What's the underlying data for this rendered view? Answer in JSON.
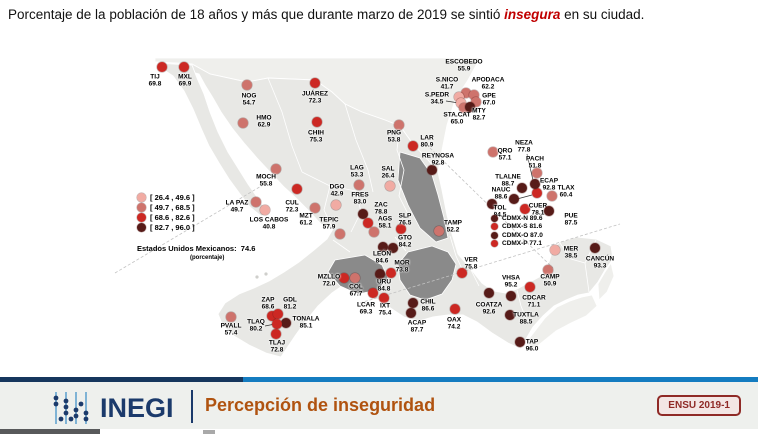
{
  "title": {
    "part1": "Porcentaje de la población de 18 años y más que durante marzo de 2019 se sintió ",
    "highlight": "insegura",
    "part2": " en su ciudad."
  },
  "colors": {
    "class_colors": [
      "#F1ABA3",
      "#CE736C",
      "#CC2823",
      "#571B18"
    ],
    "accent_red": "#c00000",
    "brand_navy": "#1b3a6b",
    "stripe_blue": "#147cc0",
    "footer_orange": "#b05310",
    "badge_red": "#8f2a26"
  },
  "legend": {
    "classes": [
      {
        "label": "[ 26.4 , 49.6 ]",
        "color": "#F1ABA3"
      },
      {
        "label": "[ 49.7 , 68.5 ]",
        "color": "#CE736C"
      },
      {
        "label": "[ 68.6 , 82.6 ]",
        "color": "#CC2823"
      },
      {
        "label": "[ 82.7 , 96.0 ]",
        "color": "#571B18"
      }
    ],
    "national_label": "Estados Unidos Mexicanos:",
    "national_value": "74.6",
    "unit_note": "(porcentaje)"
  },
  "cities": [
    {
      "n": "TIJ",
      "v": "69.8",
      "c": 3,
      "d": [
        162,
        67
      ],
      "l": [
        155,
        81
      ]
    },
    {
      "n": "MXL",
      "v": "69.9",
      "c": 3,
      "d": [
        184,
        67
      ],
      "l": [
        185,
        81
      ]
    },
    {
      "n": "NOG",
      "v": "54.7",
      "c": 2,
      "d": [
        247,
        85
      ],
      "l": [
        249,
        100
      ]
    },
    {
      "n": "HMO",
      "v": "62.9",
      "c": 2,
      "d": [
        243,
        123
      ],
      "l": [
        264,
        122
      ]
    },
    {
      "n": "JUÁREZ",
      "v": "72.3",
      "c": 3,
      "d": [
        315,
        83
      ],
      "l": [
        315,
        98
      ]
    },
    {
      "n": "CHIH",
      "v": "75.3",
      "c": 3,
      "d": [
        317,
        122
      ],
      "l": [
        316,
        137
      ]
    },
    {
      "n": "MOCH",
      "v": "55.8",
      "c": 2,
      "d": [
        276,
        169
      ],
      "l": [
        266,
        181
      ]
    },
    {
      "n": "LA PAZ",
      "v": "49.7",
      "c": 2,
      "d": [
        256,
        202
      ],
      "l": [
        237,
        207
      ]
    },
    {
      "n": "LOS CABOS",
      "v": "40.8",
      "c": 1,
      "d": [
        265,
        210
      ],
      "l": [
        269,
        224
      ]
    },
    {
      "n": "CUL",
      "v": "72.3",
      "c": 3,
      "d": [
        297,
        189
      ],
      "l": [
        292,
        207
      ]
    },
    {
      "n": "MZT",
      "v": "61.2",
      "c": 2,
      "d": [
        315,
        208
      ],
      "l": [
        306,
        220
      ]
    },
    {
      "n": "DGO",
      "v": "42.9",
      "c": 1,
      "d": [
        336,
        205
      ],
      "l": [
        337,
        191
      ]
    },
    {
      "n": "TEPIC",
      "v": "57.9",
      "c": 2,
      "d": [
        340,
        234
      ],
      "l": [
        329,
        224
      ]
    },
    {
      "n": "ESCOBEDO",
      "v": "55.9",
      "c": 2,
      "d": [
        466,
        93
      ],
      "l": [
        464,
        66
      ]
    },
    {
      "n": "S.NICO",
      "v": "41.7",
      "c": 1,
      "d": [
        459,
        97
      ],
      "l": [
        447,
        84
      ]
    },
    {
      "n": "APODACA",
      "v": "62.2",
      "c": 2,
      "d": [
        474,
        95
      ],
      "l": [
        488,
        84
      ]
    },
    {
      "n": "S.PEDR",
      "v": "34.5",
      "c": 1,
      "d": [
        461,
        103
      ],
      "l": [
        437,
        99
      ]
    },
    {
      "n": "GPE",
      "v": "67.0",
      "c": 2,
      "d": [
        476,
        102
      ],
      "l": [
        489,
        100
      ]
    },
    {
      "n": "STA.CAT",
      "v": "65.0",
      "c": 2,
      "d": [
        464,
        108
      ],
      "l": [
        457,
        119
      ]
    },
    {
      "n": "MTY",
      "v": "82.7",
      "c": 4,
      "d": [
        470,
        107
      ],
      "l": [
        479,
        115
      ]
    },
    {
      "n": "PNG",
      "v": "53.8",
      "c": 2,
      "d": [
        399,
        125
      ],
      "l": [
        394,
        137
      ]
    },
    {
      "n": "LAR",
      "v": "80.9",
      "c": 3,
      "d": [
        413,
        146
      ],
      "l": [
        427,
        142
      ]
    },
    {
      "n": "REYNOSA",
      "v": "92.8",
      "c": 4,
      "d": [
        432,
        170
      ],
      "l": [
        438,
        160
      ]
    },
    {
      "n": "LAG",
      "v": "53.3",
      "c": 2,
      "d": [
        359,
        185
      ],
      "l": [
        357,
        172
      ]
    },
    {
      "n": "SAL",
      "v": "26.4",
      "c": 1,
      "d": [
        390,
        186
      ],
      "l": [
        388,
        173
      ]
    },
    {
      "n": "TAMP",
      "v": "52.2",
      "c": 2,
      "d": [
        439,
        231
      ],
      "l": [
        453,
        227
      ]
    },
    {
      "n": "QRO",
      "v": "57.1",
      "c": 2,
      "d": [
        493,
        152
      ],
      "l": [
        505,
        155
      ]
    },
    {
      "n": "PACH",
      "v": "51.8",
      "c": 2,
      "d": [
        537,
        173
      ],
      "l": [
        535,
        163
      ]
    },
    {
      "n": "FRES",
      "v": "83.0",
      "c": 4,
      "d": [
        363,
        214
      ],
      "l": [
        360,
        199
      ]
    },
    {
      "n": "ZAC",
      "v": "78.8",
      "c": 3,
      "d": [
        368,
        223
      ],
      "l": [
        381,
        209
      ]
    },
    {
      "n": "AGS",
      "v": "58.1",
      "c": 2,
      "d": [
        374,
        232
      ],
      "l": [
        385,
        223
      ]
    },
    {
      "n": "SLP",
      "v": "76.5",
      "c": 3,
      "d": [
        401,
        229
      ],
      "l": [
        405,
        220
      ]
    },
    {
      "n": "GTO",
      "v": "84.2",
      "c": 4,
      "d": [
        393,
        248
      ],
      "l": [
        405,
        242
      ]
    },
    {
      "n": "LEÓN",
      "v": "84.6",
      "c": 4,
      "d": [
        383,
        247
      ],
      "l": [
        382,
        258
      ]
    },
    {
      "n": "MOR",
      "v": "73.8",
      "c": 3,
      "d": [
        391,
        273
      ],
      "l": [
        402,
        267
      ]
    },
    {
      "n": "URU",
      "v": "84.8",
      "c": 4,
      "d": [
        380,
        274
      ],
      "l": [
        384,
        286
      ]
    },
    {
      "n": "MZLLO",
      "v": "72.0",
      "c": 3,
      "d": [
        344,
        278
      ],
      "l": [
        329,
        281
      ]
    },
    {
      "n": "COL",
      "v": "67.7",
      "c": 2,
      "d": [
        355,
        278
      ],
      "l": [
        356,
        291
      ]
    },
    {
      "n": "LCAR",
      "v": "69.3",
      "c": 3,
      "d": [
        373,
        293
      ],
      "l": [
        366,
        309
      ]
    },
    {
      "n": "IXT",
      "v": "75.4",
      "c": 3,
      "d": [
        384,
        298
      ],
      "l": [
        385,
        310
      ]
    },
    {
      "n": "ZAP",
      "v": "68.6",
      "c": 3,
      "d": [
        272,
        316
      ],
      "l": [
        268,
        304
      ]
    },
    {
      "n": "GDL",
      "v": "81.2",
      "c": 3,
      "d": [
        278,
        314
      ],
      "l": [
        290,
        304
      ]
    },
    {
      "n": "TONALA",
      "v": "85.1",
      "c": 4,
      "d": [
        286,
        323
      ],
      "l": [
        306,
        323
      ]
    },
    {
      "n": "TLAQ",
      "v": "80.2",
      "c": 3,
      "d": [
        277,
        324
      ],
      "l": [
        256,
        326
      ]
    },
    {
      "n": "TLAJ",
      "v": "72.8",
      "c": 3,
      "d": [
        276,
        334
      ],
      "l": [
        277,
        347
      ]
    },
    {
      "n": "PVALL",
      "v": "57.4",
      "c": 2,
      "d": [
        231,
        317
      ],
      "l": [
        231,
        330
      ]
    },
    {
      "n": "CHIL",
      "v": "86.6",
      "c": 4,
      "d": [
        413,
        303
      ],
      "l": [
        428,
        306
      ]
    },
    {
      "n": "ACAP",
      "v": "87.7",
      "c": 4,
      "d": [
        411,
        313
      ],
      "l": [
        417,
        327
      ]
    },
    {
      "n": "OAX",
      "v": "74.2",
      "c": 3,
      "d": [
        455,
        309
      ],
      "l": [
        454,
        324
      ]
    },
    {
      "n": "VER",
      "v": "75.8",
      "c": 3,
      "d": [
        462,
        273
      ],
      "l": [
        471,
        264
      ]
    },
    {
      "n": "COATZA",
      "v": "92.6",
      "c": 4,
      "d": [
        489,
        293
      ],
      "l": [
        489,
        309
      ]
    },
    {
      "n": "VHSA",
      "v": "95.2",
      "c": 4,
      "d": [
        511,
        296
      ],
      "l": [
        511,
        282
      ]
    },
    {
      "n": "CDCAR",
      "v": "71.1",
      "c": 3,
      "d": [
        530,
        287
      ],
      "l": [
        534,
        302
      ]
    },
    {
      "n": "TUXTLA",
      "v": "88.5",
      "c": 4,
      "d": [
        510,
        315
      ],
      "l": [
        526,
        319
      ]
    },
    {
      "n": "TAP",
      "v": "96.0",
      "c": 4,
      "d": [
        520,
        342
      ],
      "l": [
        532,
        346
      ]
    },
    {
      "n": "CAMP",
      "v": "50.9",
      "c": 2,
      "d": [
        548,
        270
      ],
      "l": [
        550,
        281
      ]
    },
    {
      "n": "MER",
      "v": "38.5",
      "c": 1,
      "d": [
        555,
        250
      ],
      "l": [
        571,
        253
      ]
    },
    {
      "n": "CANCÚN",
      "v": "93.3",
      "c": 4,
      "d": [
        595,
        248
      ],
      "l": [
        600,
        263
      ]
    },
    {
      "n": "NEZA",
      "v": "77.8",
      "c": 3,
      "d": [
        537,
        193
      ],
      "l": [
        524,
        147
      ]
    },
    {
      "n": "TLALNE",
      "v": "88.7",
      "c": 4,
      "d": [
        522,
        188
      ],
      "l": [
        508,
        181
      ]
    },
    {
      "n": "ECAP",
      "v": "92.8",
      "c": 4,
      "d": [
        535,
        184
      ],
      "l": [
        549,
        185
      ]
    },
    {
      "n": "NAUC",
      "v": "88.6",
      "c": 4,
      "d": [
        514,
        199
      ],
      "l": [
        501,
        194
      ]
    },
    {
      "n": "TOL",
      "v": "84.5",
      "c": 4,
      "d": [
        492,
        204
      ],
      "l": [
        500,
        212
      ]
    },
    {
      "n": "CUER",
      "v": "78.1",
      "c": 3,
      "d": [
        525,
        209
      ],
      "l": [
        538,
        210
      ]
    },
    {
      "n": "TLAX",
      "v": "60.4",
      "c": 2,
      "d": [
        552,
        196
      ],
      "l": [
        566,
        192
      ]
    },
    {
      "n": "PUE",
      "v": "87.5",
      "c": 4,
      "d": [
        549,
        211
      ],
      "l": [
        571,
        220
      ]
    }
  ],
  "cdmx_list": [
    {
      "n": "CDMX-N",
      "v": "89.6",
      "c": 4
    },
    {
      "n": "CDMX-S",
      "v": "81.6",
      "c": 3
    },
    {
      "n": "CDMX-O",
      "v": "87.0",
      "c": 4
    },
    {
      "n": "CDMX-P",
      "v": "77.1",
      "c": 3
    }
  ],
  "footer": {
    "brand": "INEGI",
    "title": "Percepción de inseguridad",
    "badge": "ENSU 2019-1"
  }
}
